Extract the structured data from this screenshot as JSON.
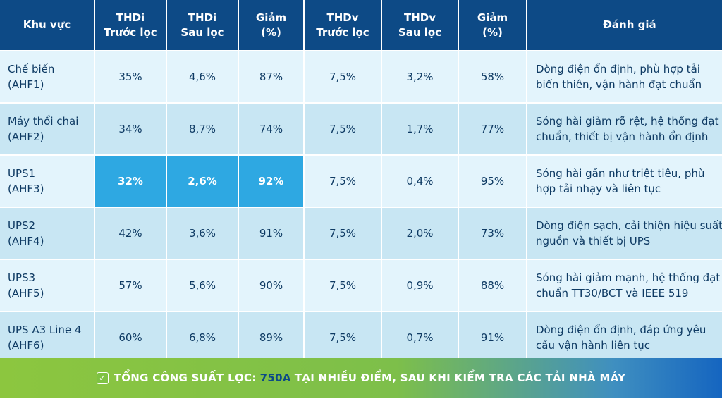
{
  "headers": [
    {
      "line1": "Khu vực",
      "line2": ""
    },
    {
      "line1": "THDi",
      "line2": "Trước lọc"
    },
    {
      "line1": "THDi",
      "line2": "Sau lọc"
    },
    {
      "line1": "Giảm",
      "line2": "(%)"
    },
    {
      "line1": "THDv",
      "line2": "Trước lọc"
    },
    {
      "line1": "THDv",
      "line2": "Sau lọc"
    },
    {
      "line1": "Giảm",
      "line2": "(%)"
    },
    {
      "line1": "Đánh giá",
      "line2": ""
    }
  ],
  "rows": [
    {
      "area1": "Chế biến",
      "area2": "(AHF1)",
      "thdi_before": "35%",
      "thdi_after": "4,6%",
      "thdi_reduce": "87%",
      "thdv_before": "7,5%",
      "thdv_after": "3,2%",
      "thdv_reduce": "58%",
      "eval": "Dòng điện ổn định, phù hợp tải biến thiên, vận hành đạt chuẩn"
    },
    {
      "area1": "Máy thổi chai",
      "area2": "(AHF2)",
      "thdi_before": "34%",
      "thdi_after": "8,7%",
      "thdi_reduce": "74%",
      "thdv_before": "7,5%",
      "thdv_after": "1,7%",
      "thdv_reduce": "77%",
      "eval": "Sóng hài giảm rõ rệt, hệ thống đạt chuẩn, thiết bị vận hành ổn định"
    },
    {
      "area1": "UPS1",
      "area2": "(AHF3)",
      "thdi_before": "32%",
      "thdi_after": "2,6%",
      "thdi_reduce": "92%",
      "thdv_before": "7,5%",
      "thdv_after": "0,4%",
      "thdv_reduce": "95%",
      "eval": "Sóng hài gần như triệt tiêu, phù hợp tải nhạy và liên tục"
    },
    {
      "area1": "UPS2",
      "area2": "(AHF4)",
      "thdi_before": "42%",
      "thdi_after": "3,6%",
      "thdi_reduce": "91%",
      "thdv_before": "7,5%",
      "thdv_after": "2,0%",
      "thdv_reduce": "73%",
      "eval": "Dòng điện sạch, cải thiện hiệu suất nguồn và thiết bị UPS"
    },
    {
      "area1": "UPS3",
      "area2": "(AHF5)",
      "thdi_before": "57%",
      "thdi_after": "5,6%",
      "thdi_reduce": "90%",
      "thdv_before": "7,5%",
      "thdv_after": "0,9%",
      "thdv_reduce": "88%",
      "eval": "Sóng hài giảm mạnh, hệ thống đạt chuẩn TT30/BCT và IEEE 519"
    },
    {
      "area1": "UPS A3 Line 4",
      "area2": "(AHF6)",
      "thdi_before": "60%",
      "thdi_after": "6,8%",
      "thdi_reduce": "89%",
      "thdv_before": "7,5%",
      "thdv_after": "0,7%",
      "thdv_reduce": "91%",
      "eval": "Dòng điện ổn định, đáp ứng yêu cầu vận hành liên tục"
    }
  ],
  "footer": {
    "check": "✓",
    "prefix": "TỔNG CÔNG SUẤT LỌC:",
    "value": "750A",
    "suffix": "TẠI NHIỀU ĐIỂM, SAU KHI KIỂM TRA CÁC TẢI NHÀ MÁY"
  },
  "colors": {
    "header_bg": "#0d4a86",
    "row_light": "#e3f4fc",
    "row_dark": "#c8e6f3",
    "highlight": "#2ea8e2",
    "text": "#0e3a63",
    "footer_green": "#8cc63f",
    "footer_blue": "#1565c0"
  }
}
